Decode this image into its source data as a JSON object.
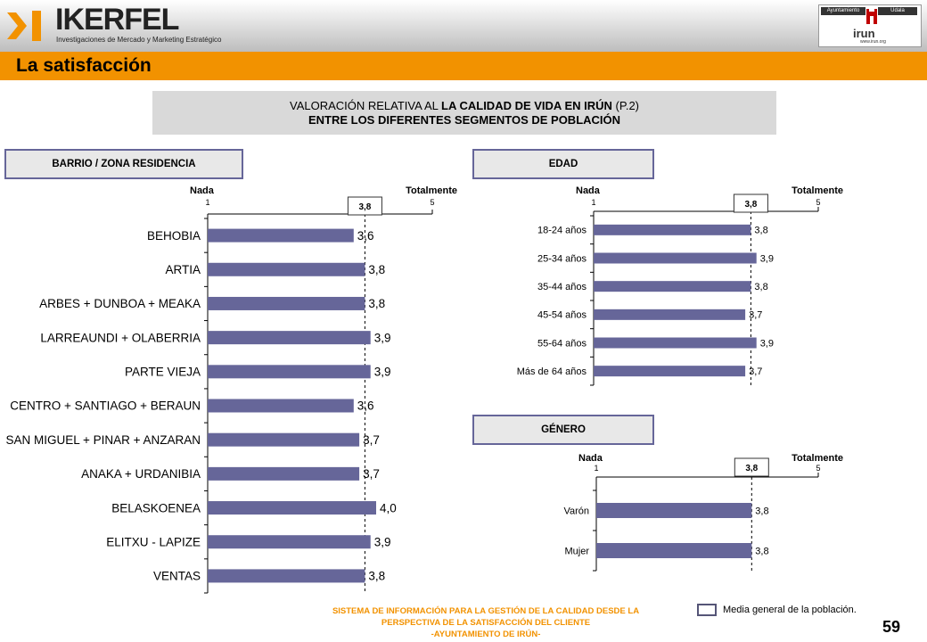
{
  "header": {
    "brand_name": "IKERFEL",
    "brand_tagline": "Investigaciones de Mercado y Marketing Estratégico",
    "municipality_logo": {
      "left_label": "Ayuntamiento",
      "right_label": "Udala",
      "name": "irun",
      "url": "www.irun.org"
    }
  },
  "section_title": "La satisfacción",
  "title": {
    "line1_prefix": "VALORACIÓN RELATIVA AL ",
    "line1_bold": "LA CALIDAD DE VIDA EN IRÚN",
    "line1_suffix": " (P.2)",
    "line2": "ENTRE LOS DIFERENTES SEGMENTOS DE POBLACIÓN"
  },
  "colors": {
    "bar": "#666699",
    "accent": "#f29200",
    "footer_text": "#f29200"
  },
  "chart_data": [
    {
      "type": "bar",
      "orientation": "horizontal",
      "title": "BARRIO / ZONA RESIDENCIA",
      "scale_min_label": "Nada",
      "scale_max_label": "Totalmente",
      "xlim": [
        1,
        5
      ],
      "mean": 3.8,
      "mean_label": "3,8",
      "categories": [
        "BEHOBIA",
        "ARTIA",
        "ARBES + DUNBOA + MEAKA",
        "LARREAUNDI + OLABERRIA",
        "PARTE VIEJA",
        "CENTRO + SANTIAGO + BERAUN",
        "SAN MIGUEL + PINAR + ANZARAN",
        "ANAKA + URDANIBIA",
        "BELASKOENEA",
        "ELITXU - LAPIZE",
        "VENTAS"
      ],
      "values": [
        3.6,
        3.8,
        3.8,
        3.9,
        3.9,
        3.6,
        3.7,
        3.7,
        4.0,
        3.9,
        3.8
      ],
      "value_labels": [
        "3,6",
        "3,8",
        "3,8",
        "3,9",
        "3,9",
        "3,6",
        "3,7",
        "3,7",
        "4,0",
        "3,9",
        "3,8"
      ]
    },
    {
      "type": "bar",
      "orientation": "horizontal",
      "title": "EDAD",
      "scale_min_label": "Nada",
      "scale_max_label": "Totalmente",
      "xlim": [
        1,
        5
      ],
      "mean": 3.8,
      "mean_label": "3,8",
      "categories": [
        "18-24 años",
        "25-34 años",
        "35-44 años",
        "45-54 años",
        "55-64 años",
        "Más de 64 años"
      ],
      "values": [
        3.8,
        3.9,
        3.8,
        3.7,
        3.9,
        3.7
      ],
      "value_labels": [
        "3,8",
        "3,9",
        "3,8",
        "3,7",
        "3,9",
        "3,7"
      ]
    },
    {
      "type": "bar",
      "orientation": "horizontal",
      "title": "GÉNERO",
      "scale_min_label": "Nada",
      "scale_max_label": "Totalmente",
      "xlim": [
        1,
        5
      ],
      "mean": 3.8,
      "mean_label": "3,8",
      "categories": [
        "Varón",
        "Mujer"
      ],
      "values": [
        3.8,
        3.8
      ],
      "value_labels": [
        "3,8",
        "3,8"
      ]
    }
  ],
  "legend": {
    "label": "Media general de la población."
  },
  "footer": {
    "line1": "SISTEMA DE INFORMACIÓN PARA LA GESTIÓN DE LA CALIDAD DESDE LA",
    "line2": "PERSPECTIVA DE LA SATISFACCIÓN DEL CLIENTE",
    "line3": "-AYUNTAMIENTO DE IRÚN-"
  },
  "page_number": "59"
}
